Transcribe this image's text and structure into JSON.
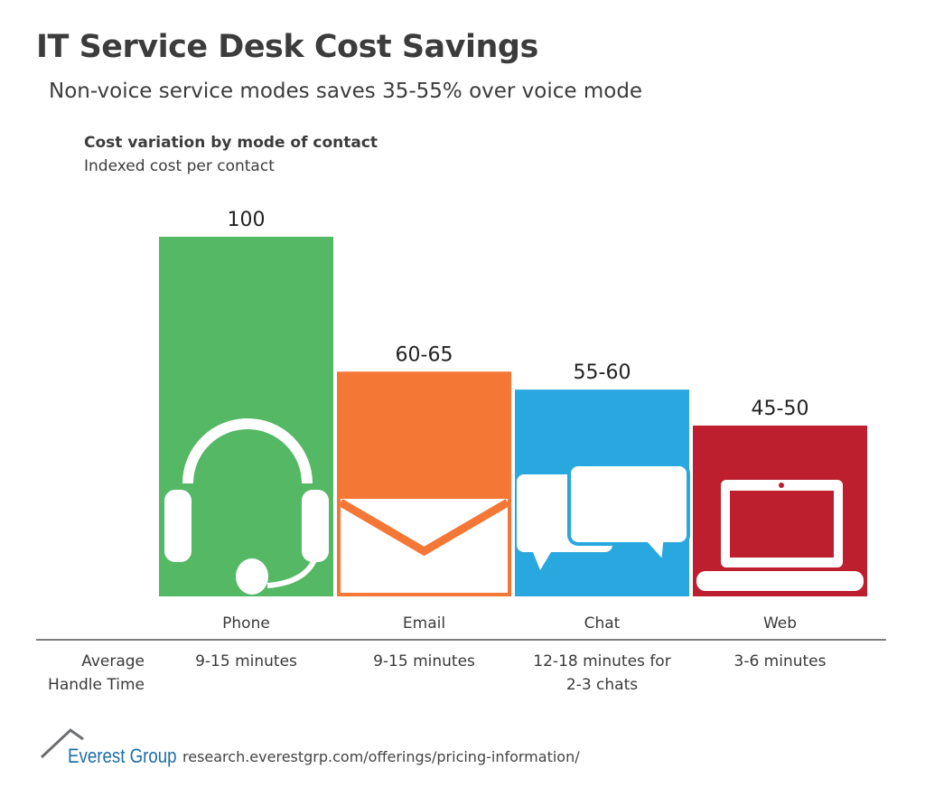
{
  "title": "IT Service Desk Cost Savings",
  "subtitle": "Non-voice service modes saves 35-55% over voice mode",
  "chart_data": {
    "type": "bar",
    "title": "Cost variation by mode of contact",
    "subtitle": "Indexed cost per contact",
    "categories": [
      "Phone",
      "Email",
      "Chat",
      "Web"
    ],
    "values": [
      {
        "low": 100,
        "high": 100
      },
      {
        "low": 60,
        "high": 65
      },
      {
        "low": 55,
        "high": 60
      },
      {
        "low": 45,
        "high": 50
      }
    ],
    "data_labels": [
      "100",
      "60-65",
      "55-60",
      "45-50"
    ],
    "colors": [
      "#55b865",
      "#f47736",
      "#29a8e0",
      "#bd1f2f"
    ],
    "icons": [
      "headset-icon",
      "envelope-icon",
      "chat-bubbles-icon",
      "laptop-icon"
    ],
    "ylim": [
      0,
      100
    ],
    "grid": false
  },
  "handle_time": {
    "label": "Average\nHandle Time",
    "values": [
      "9-15 minutes",
      "9-15 minutes",
      "12-18 minutes for\n2-3 chats",
      "3-6 minutes"
    ]
  },
  "footer": {
    "logo": "Everest Group",
    "url": "research.everestgrp.com/offerings/pricing-information/"
  }
}
